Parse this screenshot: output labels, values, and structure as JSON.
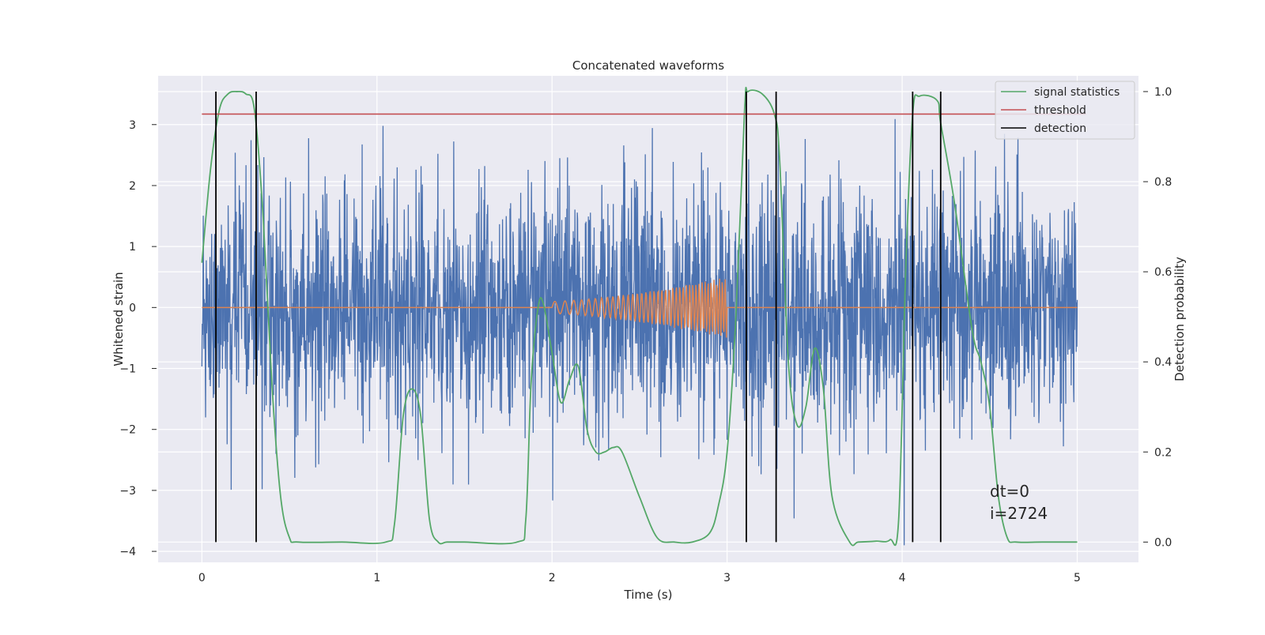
{
  "chart_data": {
    "type": "line",
    "title": "Concatenated waveforms",
    "xlabel": "Time (s)",
    "ylabel_left": "Whitened strain",
    "ylabel_right": "Detection probability",
    "xlim": [
      -0.25,
      5.35
    ],
    "ylim_left": [
      -4.18,
      3.8
    ],
    "ylim_right": [
      -0.045,
      1.035
    ],
    "x_ticks": [
      0,
      1,
      2,
      3,
      4,
      5
    ],
    "y_left_ticks": [
      -4,
      -3,
      -2,
      -1,
      0,
      1,
      2,
      3
    ],
    "y_right_ticks": [
      0.0,
      0.2,
      0.4,
      0.6,
      0.8,
      1.0
    ],
    "grid": true,
    "legend_position": "top-right",
    "legend": [
      "signal statistics",
      "threshold",
      "detection"
    ],
    "series": [
      {
        "name": "strain",
        "axis": "left",
        "color": "#4c72b0",
        "x_range": [
          0,
          5
        ],
        "description_noise_amplitude": 1.0
      },
      {
        "name": "waveform",
        "axis": "left",
        "color": "#dd8452",
        "x_range": [
          0,
          5
        ],
        "chirp_x_range": [
          2,
          3
        ],
        "chirp_end_amplitude": 0.5
      },
      {
        "name": "signal statistics",
        "axis": "right",
        "color": "#55a868",
        "x": [
          0,
          0.05,
          0.1,
          0.15,
          0.2,
          0.25,
          0.3,
          0.35,
          0.4,
          0.45,
          0.5,
          0.55,
          0.8,
          1.05,
          1.1,
          1.15,
          1.2,
          1.25,
          1.3,
          1.35,
          1.4,
          1.5,
          1.8,
          1.85,
          1.88,
          1.92,
          1.95,
          2.0,
          2.05,
          2.1,
          2.15,
          2.2,
          2.25,
          2.3,
          2.35,
          2.4,
          2.5,
          2.6,
          2.7,
          2.8,
          2.9,
          2.95,
          3.0,
          3.05,
          3.1,
          3.12,
          3.2,
          3.27,
          3.3,
          3.35,
          3.4,
          3.45,
          3.5,
          3.55,
          3.6,
          3.7,
          3.75,
          3.85,
          3.93,
          3.98,
          4.02,
          4.06,
          4.1,
          4.2,
          4.22,
          4.3,
          4.4,
          4.45,
          4.5,
          4.55,
          4.6,
          4.65,
          4.8,
          5.0
        ],
        "y": [
          0.62,
          0.83,
          0.96,
          0.995,
          1.0,
          0.995,
          0.96,
          0.72,
          0.35,
          0.1,
          0.01,
          0.0,
          0.0,
          0.0,
          0.04,
          0.28,
          0.34,
          0.28,
          0.05,
          0.0,
          0.0,
          0.0,
          0.0,
          0.05,
          0.35,
          0.52,
          0.53,
          0.42,
          0.31,
          0.36,
          0.39,
          0.25,
          0.2,
          0.2,
          0.21,
          0.2,
          0.1,
          0.01,
          0.0,
          0.0,
          0.02,
          0.08,
          0.2,
          0.5,
          0.96,
          1.0,
          0.995,
          0.95,
          0.85,
          0.4,
          0.26,
          0.3,
          0.43,
          0.34,
          0.1,
          0.0,
          0.0,
          0.002,
          0.005,
          0.05,
          0.6,
          0.95,
          0.99,
          0.98,
          0.93,
          0.75,
          0.47,
          0.4,
          0.3,
          0.1,
          0.01,
          0.0,
          0.0,
          0.0
        ]
      },
      {
        "name": "threshold",
        "axis": "right",
        "color": "#c44e52",
        "x": [
          0,
          5.05
        ],
        "y": [
          0.95,
          0.95
        ]
      },
      {
        "name": "detection",
        "axis": "right",
        "color": "#000000",
        "x": [
          0.08,
          0.31,
          3.11,
          3.28,
          4.06,
          4.22
        ],
        "y_range": [
          0.0,
          1.0
        ]
      }
    ],
    "annotations": [
      "dt=0",
      "i=2724"
    ]
  }
}
